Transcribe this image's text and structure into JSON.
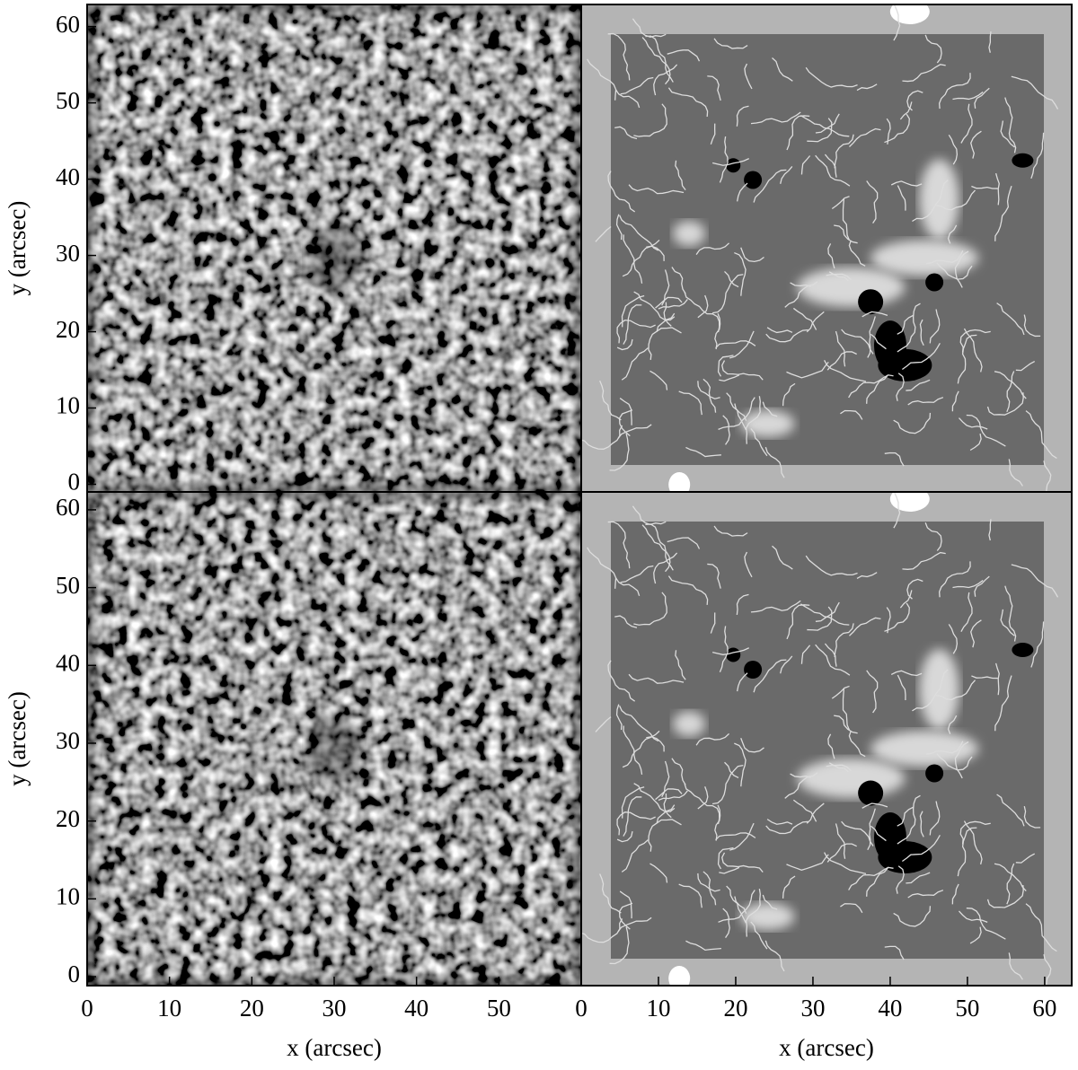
{
  "chart_data": [
    {
      "type": "image",
      "xlim": [
        0,
        60
      ],
      "ylim": [
        -1,
        62.9
      ],
      "yticks": [
        0,
        10,
        20,
        30,
        40,
        50,
        60
      ],
      "ylabel": "y (arcsec)"
    },
    {
      "type": "image",
      "xlim": [
        0,
        63.5
      ],
      "ylim": [
        -1,
        62.9
      ]
    },
    {
      "type": "image",
      "xlim": [
        0,
        60
      ],
      "ylim": [
        -1.15,
        62.3
      ],
      "xticks": [
        0,
        10,
        20,
        30,
        40,
        50
      ],
      "yticks": [
        0,
        10,
        20,
        30,
        40,
        50,
        60
      ],
      "xlabel": "x (arcsec)",
      "ylabel": "y (arcsec)"
    },
    {
      "type": "image",
      "xlim": [
        0,
        63.5
      ],
      "ylim": [
        -1.15,
        62.3
      ],
      "xticks": [
        0,
        10,
        20,
        30,
        40,
        50,
        60
      ],
      "xlabel": "x (arcsec)"
    }
  ]
}
